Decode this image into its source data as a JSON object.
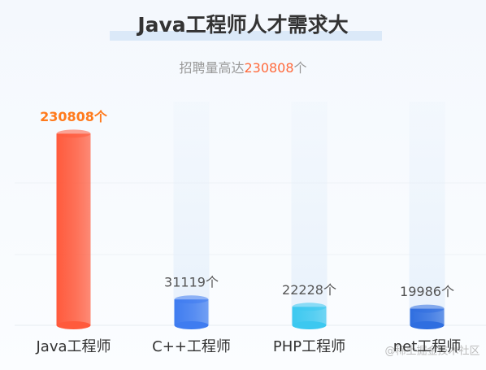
{
  "chart_data": {
    "type": "bar",
    "title": "Java工程师人才需求大",
    "subtitle": [
      "招聘量高达",
      "230808",
      "个"
    ],
    "categories": [
      "Java工程师",
      "C++工程师",
      "PHP工程师",
      "net工程师"
    ],
    "values": [
      230808,
      31119,
      22228,
      19986
    ],
    "value_labels": [
      "230808个",
      "31119个",
      "22228个",
      "19986个"
    ],
    "colors": [
      "#ff5a3c",
      "#3f7cf0",
      "#3cc8f0",
      "#2f6ee0"
    ],
    "ylim": [
      0,
      240000
    ]
  },
  "watermark": "@稀土掘金技术社区"
}
